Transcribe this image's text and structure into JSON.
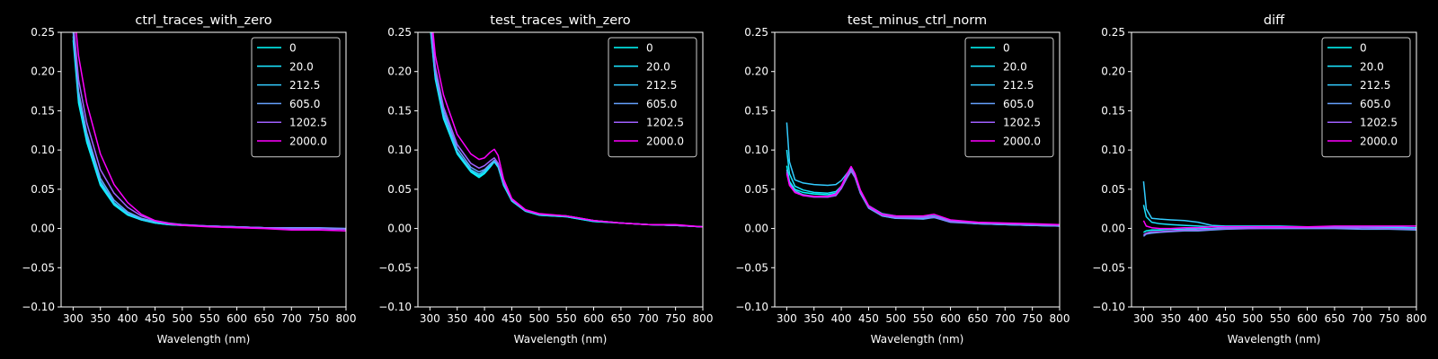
{
  "figure": {
    "background": "#000000",
    "foreground": "#ffffff",
    "series_colors": [
      "#00ffff",
      "#1ae5ff",
      "#33ccff",
      "#66a1ff",
      "#a05fff",
      "#ff00ff"
    ]
  },
  "chart_data": [
    {
      "type": "line",
      "title": "ctrl_traces_with_zero",
      "xlabel": "Wavelength (nm)",
      "ylabel": "",
      "xlim": [
        278,
        800
      ],
      "ylim": [
        -0.1,
        0.25
      ],
      "xticks": [
        "300",
        "350",
        "400",
        "450",
        "500",
        "550",
        "600",
        "650",
        "700",
        "750",
        "800"
      ],
      "yticks": [
        "−0.10",
        "−0.05",
        "0.00",
        "0.05",
        "0.10",
        "0.15",
        "0.20",
        "0.25"
      ],
      "grid": false,
      "legend": "top-right",
      "x": [
        300,
        310,
        325,
        350,
        375,
        400,
        425,
        450,
        475,
        500,
        550,
        600,
        650,
        700,
        750,
        800
      ],
      "series": [
        {
          "name": "0",
          "values": [
            0.24,
            0.16,
            0.11,
            0.055,
            0.03,
            0.017,
            0.011,
            0.007,
            0.005,
            0.004,
            0.003,
            0.002,
            0.001,
            0.0,
            0.0,
            -0.001
          ]
        },
        {
          "name": "20.0",
          "values": [
            0.245,
            0.165,
            0.113,
            0.057,
            0.031,
            0.018,
            0.011,
            0.007,
            0.005,
            0.004,
            0.003,
            0.002,
            0.001,
            0.0,
            0.0,
            -0.001
          ]
        },
        {
          "name": "212.5",
          "values": [
            0.25,
            0.17,
            0.118,
            0.06,
            0.033,
            0.019,
            0.012,
            0.008,
            0.006,
            0.004,
            0.003,
            0.002,
            0.001,
            0.001,
            0.0,
            0.0
          ]
        },
        {
          "name": "605.0",
          "values": [
            0.255,
            0.175,
            0.122,
            0.064,
            0.036,
            0.021,
            0.013,
            0.009,
            0.006,
            0.005,
            0.003,
            0.002,
            0.001,
            0.001,
            0.001,
            0.0
          ]
        },
        {
          "name": "1202.5",
          "values": [
            0.265,
            0.19,
            0.135,
            0.075,
            0.045,
            0.027,
            0.016,
            0.01,
            0.007,
            0.005,
            0.003,
            0.002,
            0.001,
            0.0,
            0.0,
            -0.001
          ]
        },
        {
          "name": "2000.0",
          "values": [
            0.29,
            0.22,
            0.16,
            0.095,
            0.056,
            0.033,
            0.018,
            0.01,
            0.006,
            0.004,
            0.002,
            0.001,
            0.0,
            -0.002,
            -0.002,
            -0.003
          ]
        }
      ]
    },
    {
      "type": "line",
      "title": "test_traces_with_zero",
      "xlabel": "Wavelength (nm)",
      "ylabel": "",
      "xlim": [
        278,
        800
      ],
      "ylim": [
        -0.1,
        0.25
      ],
      "xticks": [
        "300",
        "350",
        "400",
        "450",
        "500",
        "550",
        "600",
        "650",
        "700",
        "750",
        "800"
      ],
      "yticks": [
        "−0.10",
        "−0.05",
        "0.00",
        "0.05",
        "0.10",
        "0.15",
        "0.20",
        "0.25"
      ],
      "grid": false,
      "legend": "top-right",
      "x": [
        300,
        310,
        325,
        350,
        375,
        390,
        400,
        410,
        418,
        425,
        435,
        450,
        475,
        500,
        550,
        600,
        650,
        700,
        750,
        800
      ],
      "series": [
        {
          "name": "0",
          "values": [
            0.26,
            0.19,
            0.14,
            0.095,
            0.072,
            0.065,
            0.07,
            0.078,
            0.085,
            0.078,
            0.055,
            0.035,
            0.022,
            0.017,
            0.015,
            0.009,
            0.007,
            0.005,
            0.004,
            0.002
          ]
        },
        {
          "name": "20.0",
          "values": [
            0.262,
            0.192,
            0.142,
            0.096,
            0.073,
            0.067,
            0.071,
            0.079,
            0.085,
            0.079,
            0.056,
            0.035,
            0.022,
            0.017,
            0.015,
            0.009,
            0.007,
            0.005,
            0.004,
            0.002
          ]
        },
        {
          "name": "212.5",
          "values": [
            0.265,
            0.195,
            0.145,
            0.098,
            0.075,
            0.069,
            0.073,
            0.08,
            0.086,
            0.08,
            0.057,
            0.036,
            0.023,
            0.018,
            0.016,
            0.01,
            0.007,
            0.005,
            0.004,
            0.002
          ]
        },
        {
          "name": "605.0",
          "values": [
            0.27,
            0.2,
            0.15,
            0.102,
            0.078,
            0.072,
            0.075,
            0.082,
            0.087,
            0.081,
            0.058,
            0.036,
            0.023,
            0.018,
            0.016,
            0.01,
            0.007,
            0.005,
            0.004,
            0.002
          ]
        },
        {
          "name": "1202.5",
          "values": [
            0.275,
            0.205,
            0.155,
            0.107,
            0.083,
            0.077,
            0.08,
            0.086,
            0.09,
            0.083,
            0.059,
            0.037,
            0.023,
            0.018,
            0.016,
            0.01,
            0.007,
            0.005,
            0.004,
            0.002
          ]
        },
        {
          "name": "2000.0",
          "values": [
            0.29,
            0.22,
            0.17,
            0.12,
            0.095,
            0.088,
            0.09,
            0.097,
            0.101,
            0.093,
            0.063,
            0.038,
            0.024,
            0.019,
            0.016,
            0.01,
            0.007,
            0.005,
            0.005,
            0.002
          ]
        }
      ]
    },
    {
      "type": "line",
      "title": "test_minus_ctrl_norm",
      "xlabel": "Wavelength (nm)",
      "ylabel": "",
      "xlim": [
        278,
        800
      ],
      "ylim": [
        -0.1,
        0.25
      ],
      "xticks": [
        "300",
        "350",
        "400",
        "450",
        "500",
        "550",
        "600",
        "650",
        "700",
        "750",
        "800"
      ],
      "yticks": [
        "−0.10",
        "−0.05",
        "0.00",
        "0.05",
        "0.10",
        "0.15",
        "0.20",
        "0.25"
      ],
      "grid": false,
      "legend": "top-right",
      "x": [
        300,
        305,
        315,
        330,
        350,
        375,
        390,
        400,
        410,
        418,
        425,
        435,
        450,
        475,
        500,
        550,
        570,
        600,
        650,
        700,
        750,
        800
      ],
      "series": [
        {
          "name": "0",
          "values": [
            0.08,
            0.06,
            0.05,
            0.046,
            0.044,
            0.043,
            0.045,
            0.053,
            0.065,
            0.074,
            0.066,
            0.045,
            0.026,
            0.016,
            0.013,
            0.013,
            0.014,
            0.009,
            0.006,
            0.005,
            0.004,
            0.003
          ]
        },
        {
          "name": "20.0",
          "values": [
            0.1,
            0.07,
            0.054,
            0.049,
            0.046,
            0.045,
            0.047,
            0.054,
            0.066,
            0.075,
            0.067,
            0.046,
            0.027,
            0.017,
            0.014,
            0.013,
            0.014,
            0.009,
            0.006,
            0.005,
            0.004,
            0.003
          ]
        },
        {
          "name": "212.5",
          "values": [
            0.135,
            0.085,
            0.062,
            0.058,
            0.056,
            0.055,
            0.056,
            0.061,
            0.07,
            0.077,
            0.069,
            0.048,
            0.029,
            0.019,
            0.016,
            0.015,
            0.016,
            0.01,
            0.007,
            0.006,
            0.004,
            0.004
          ]
        },
        {
          "name": "605.0",
          "values": [
            0.075,
            0.058,
            0.048,
            0.043,
            0.041,
            0.04,
            0.042,
            0.051,
            0.064,
            0.073,
            0.065,
            0.045,
            0.026,
            0.016,
            0.013,
            0.012,
            0.014,
            0.008,
            0.006,
            0.005,
            0.004,
            0.003
          ]
        },
        {
          "name": "1202.5",
          "values": [
            0.072,
            0.056,
            0.046,
            0.042,
            0.04,
            0.04,
            0.042,
            0.051,
            0.065,
            0.074,
            0.066,
            0.046,
            0.027,
            0.017,
            0.014,
            0.014,
            0.015,
            0.009,
            0.007,
            0.006,
            0.005,
            0.004
          ]
        },
        {
          "name": "2000.0",
          "values": [
            0.07,
            0.055,
            0.046,
            0.042,
            0.041,
            0.041,
            0.044,
            0.054,
            0.069,
            0.079,
            0.07,
            0.049,
            0.029,
            0.018,
            0.016,
            0.016,
            0.018,
            0.011,
            0.008,
            0.007,
            0.006,
            0.005
          ]
        }
      ]
    },
    {
      "type": "line",
      "title": "diff",
      "xlabel": "Wavelength (nm)",
      "ylabel": "",
      "xlim": [
        278,
        800
      ],
      "ylim": [
        -0.1,
        0.25
      ],
      "xticks": [
        "300",
        "350",
        "400",
        "450",
        "500",
        "550",
        "600",
        "650",
        "700",
        "750",
        "800"
      ],
      "yticks": [
        "−0.10",
        "−0.05",
        "0.00",
        "0.05",
        "0.10",
        "0.15",
        "0.20",
        "0.25"
      ],
      "grid": false,
      "legend": "top-right",
      "x": [
        300,
        305,
        315,
        330,
        350,
        375,
        400,
        425,
        450,
        500,
        550,
        600,
        650,
        700,
        750,
        800
      ],
      "series": [
        {
          "name": "0",
          "values": [
            -0.005,
            -0.003,
            -0.002,
            -0.002,
            -0.001,
            -0.001,
            0.0,
            0.0,
            0.001,
            0.001,
            0.001,
            0.001,
            0.001,
            0.001,
            0.001,
            0.001
          ]
        },
        {
          "name": "20.0",
          "values": [
            0.03,
            0.015,
            0.008,
            0.006,
            0.005,
            0.004,
            0.003,
            0.002,
            0.002,
            0.002,
            0.002,
            0.002,
            0.001,
            0.001,
            0.001,
            0.001
          ]
        },
        {
          "name": "212.5",
          "values": [
            0.06,
            0.025,
            0.013,
            0.012,
            0.011,
            0.01,
            0.008,
            0.004,
            0.003,
            0.003,
            0.003,
            0.002,
            0.002,
            0.002,
            0.002,
            0.001
          ]
        },
        {
          "name": "605.0",
          "values": [
            -0.01,
            -0.007,
            -0.006,
            -0.005,
            -0.004,
            -0.003,
            -0.003,
            -0.002,
            -0.001,
            0.0,
            0.0,
            0.0,
            0.0,
            -0.001,
            -0.001,
            -0.002
          ]
        },
        {
          "name": "1202.5",
          "values": [
            -0.008,
            -0.006,
            -0.004,
            -0.004,
            -0.003,
            -0.002,
            -0.002,
            -0.001,
            0.0,
            0.0,
            0.001,
            0.001,
            0.001,
            0.001,
            0.0,
            -0.001
          ]
        },
        {
          "name": "2000.0",
          "values": [
            0.01,
            0.003,
            0.001,
            0.0,
            0.0,
            0.001,
            0.001,
            0.002,
            0.002,
            0.002,
            0.002,
            0.002,
            0.003,
            0.003,
            0.003,
            0.003
          ]
        }
      ]
    }
  ]
}
